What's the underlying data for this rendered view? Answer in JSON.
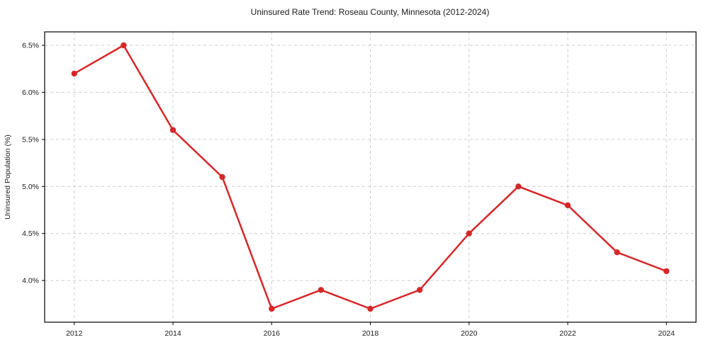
{
  "chart_data": {
    "type": "line",
    "title": "Uninsured Rate Trend: Roseau County, Minnesota (2012-2024)",
    "xlabel": "",
    "ylabel": "Uninsured Population (%)",
    "x": [
      2012,
      2013,
      2014,
      2015,
      2016,
      2017,
      2018,
      2019,
      2020,
      2021,
      2022,
      2023,
      2024
    ],
    "values": [
      6.2,
      6.5,
      5.6,
      5.1,
      3.7,
      3.9,
      3.7,
      3.9,
      4.5,
      5.0,
      4.8,
      4.3,
      4.1
    ],
    "xlim": [
      2011.4,
      2024.6
    ],
    "ylim": [
      3.557,
      6.643
    ],
    "xticks": {
      "values": [
        2012,
        2014,
        2016,
        2018,
        2020,
        2022,
        2024
      ],
      "labels": [
        "2012",
        "2014",
        "2016",
        "2018",
        "2020",
        "2022",
        "2024"
      ]
    },
    "yticks": {
      "values": [
        4.0,
        4.5,
        5.0,
        5.5,
        6.0,
        6.5
      ],
      "labels": [
        "4.0%",
        "4.5%",
        "5.0%",
        "5.5%",
        "6.0%",
        "6.5%"
      ]
    },
    "grid": true,
    "grid_style": "dashed",
    "legend_position": "none",
    "colors": {
      "line": "#d62728",
      "marker": "#d62728",
      "grid": "#cccccc",
      "frame": "#000000",
      "text": "#1a1a1a",
      "background": "#ffffff"
    },
    "marker": "circle"
  }
}
